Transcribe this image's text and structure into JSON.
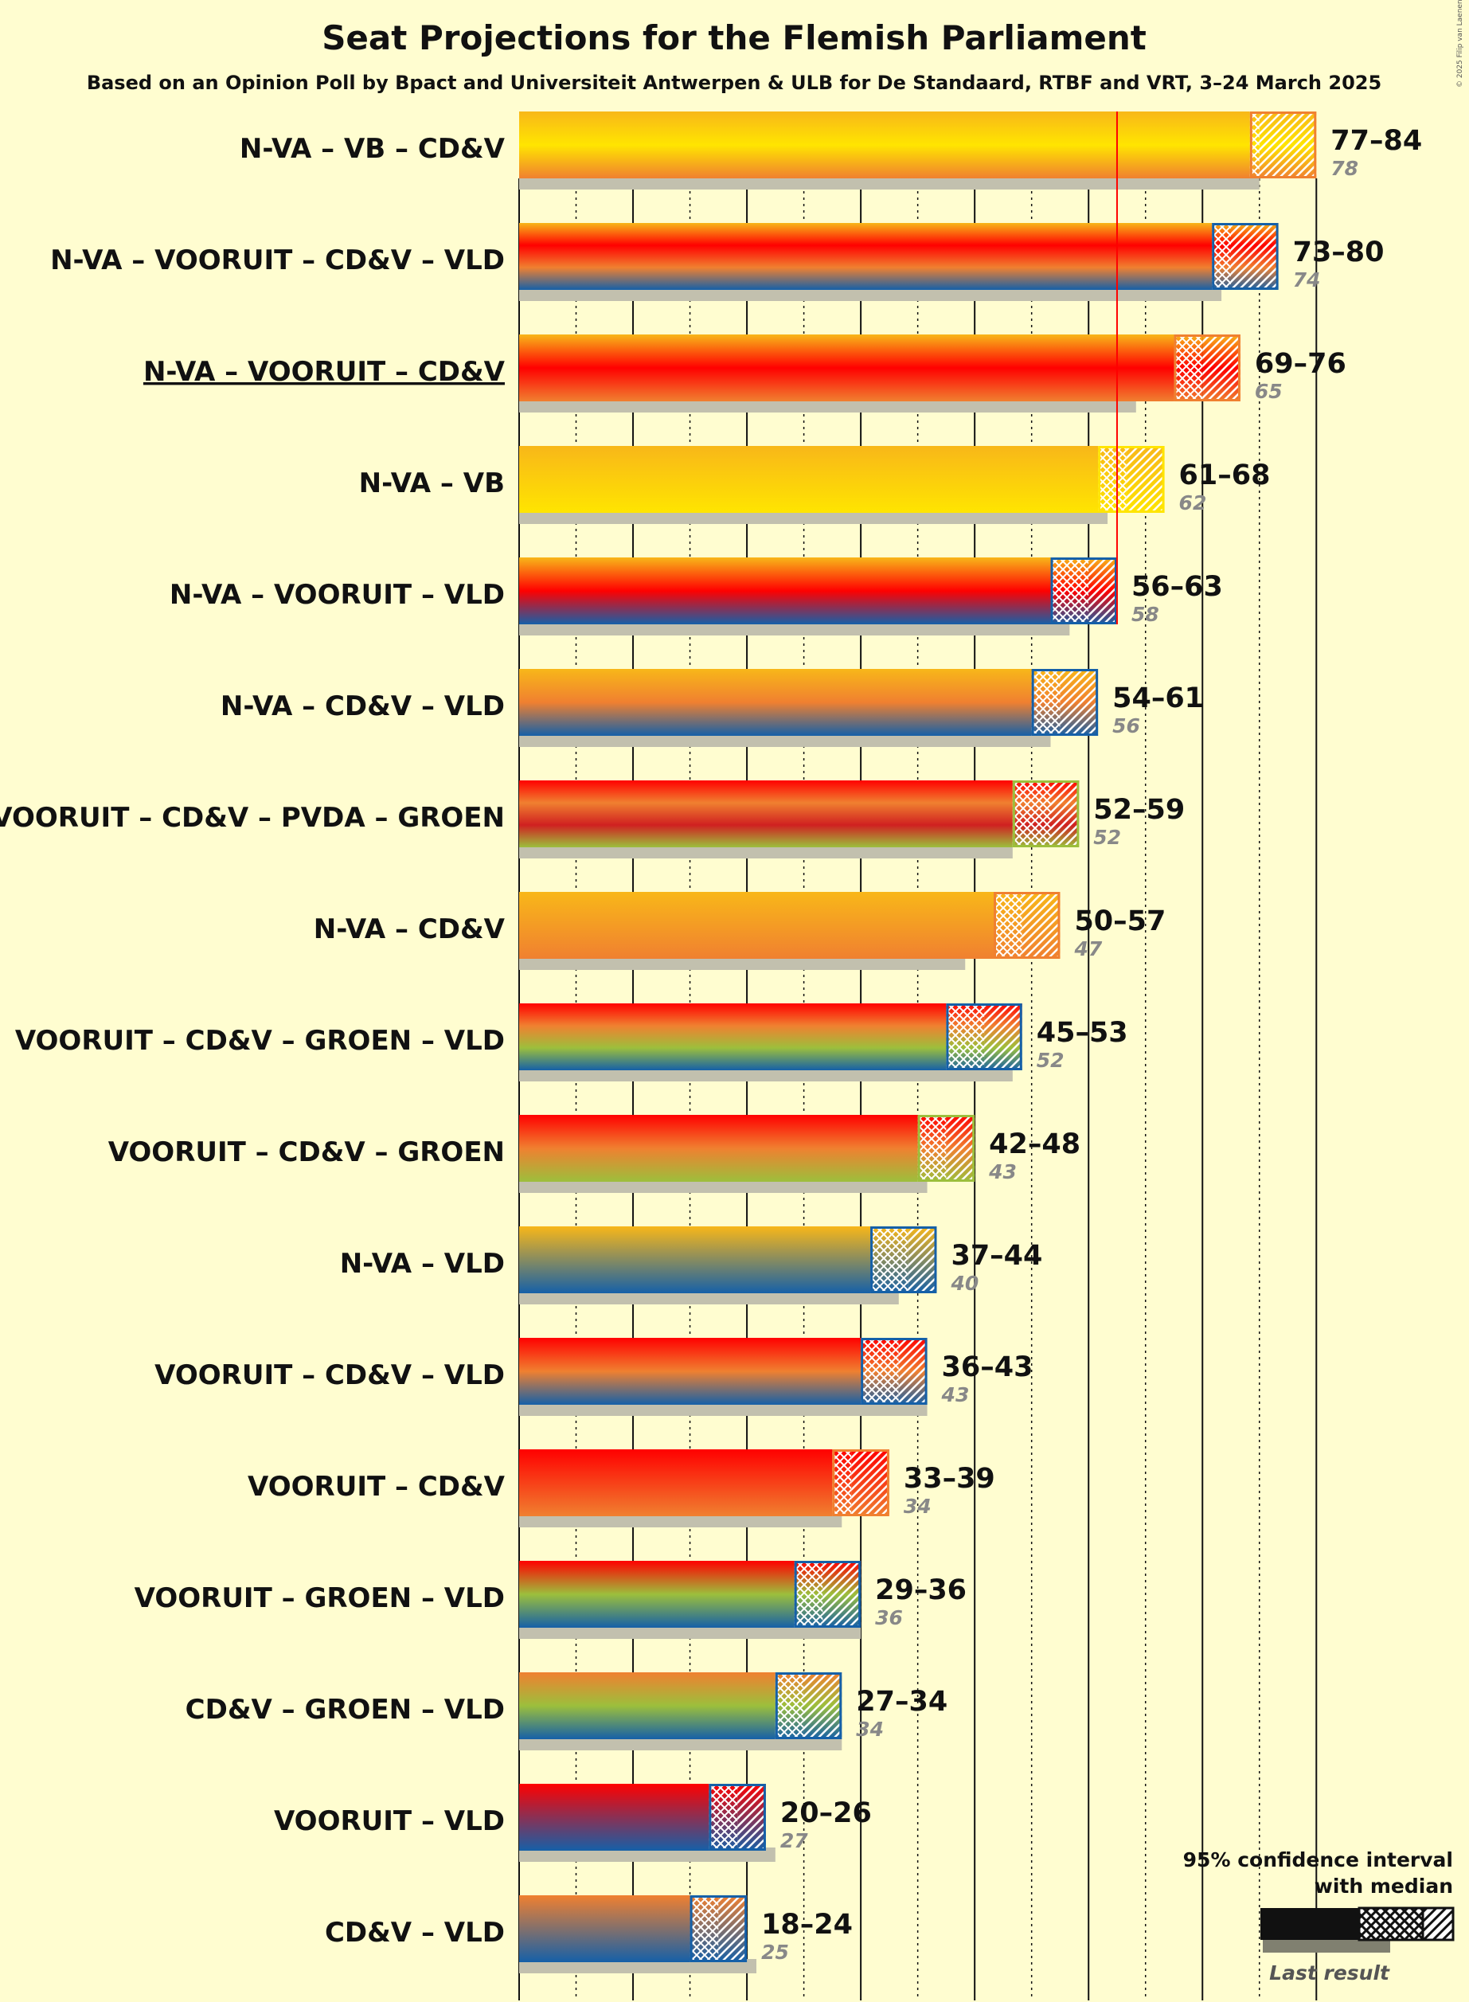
{
  "chart_data": {
    "type": "bar",
    "title": "Seat Projections for the Flemish Parliament",
    "subtitle": "Based on an Opinion Poll by Bpact and Universiteit Antwerpen & ULB for De Standaard, RTBF and VRT, 3–24 March 2025",
    "copyright": "© 2025 Filip van Laenen",
    "majority": 63,
    "xlim": [
      0,
      84
    ],
    "colors": {
      "N-VA": "#f8b719",
      "VB": "#ffe500",
      "CD&V": "#f08030",
      "VOORUIT": "#ff0000",
      "VLD": "#1560a8",
      "PVDA": "#d02020",
      "GROEN": "#9cbf3c"
    },
    "series": [
      {
        "name": "N-VA – VB – CD&V",
        "parties": [
          "N-VA",
          "VB",
          "CD&V"
        ],
        "low": 77,
        "median": 78,
        "high": 84,
        "range_label": "77–84",
        "last": 78,
        "last_label": "78",
        "underline": false
      },
      {
        "name": "N-VA – VOORUIT – CD&V – VLD",
        "parties": [
          "N-VA",
          "VOORUIT",
          "CD&V",
          "VLD"
        ],
        "low": 73,
        "median": 75,
        "high": 80,
        "range_label": "73–80",
        "last": 74,
        "last_label": "74",
        "underline": false
      },
      {
        "name": "N-VA – VOORUIT – CD&V",
        "parties": [
          "N-VA",
          "VOORUIT",
          "CD&V"
        ],
        "low": 69,
        "median": 72,
        "high": 76,
        "range_label": "69–76",
        "last": 65,
        "last_label": "65",
        "underline": true
      },
      {
        "name": "N-VA – VB",
        "parties": [
          "N-VA",
          "VB"
        ],
        "low": 61,
        "median": 64,
        "high": 68,
        "range_label": "61–68",
        "last": 62,
        "last_label": "62",
        "underline": false
      },
      {
        "name": "N-VA – VOORUIT – VLD",
        "parties": [
          "N-VA",
          "VOORUIT",
          "VLD"
        ],
        "low": 56,
        "median": 60,
        "high": 63,
        "range_label": "56–63",
        "last": 58,
        "last_label": "58",
        "underline": false
      },
      {
        "name": "N-VA – CD&V – VLD",
        "parties": [
          "N-VA",
          "CD&V",
          "VLD"
        ],
        "low": 54,
        "median": 57,
        "high": 61,
        "range_label": "54–61",
        "last": 56,
        "last_label": "56",
        "underline": false
      },
      {
        "name": "VOORUIT – CD&V – PVDA – GROEN",
        "parties": [
          "VOORUIT",
          "CD&V",
          "PVDA",
          "GROEN"
        ],
        "low": 52,
        "median": 56,
        "high": 59,
        "range_label": "52–59",
        "last": 52,
        "last_label": "52",
        "underline": false
      },
      {
        "name": "N-VA – CD&V",
        "parties": [
          "N-VA",
          "CD&V"
        ],
        "low": 50,
        "median": 53,
        "high": 57,
        "range_label": "50–57",
        "last": 47,
        "last_label": "47",
        "underline": false
      },
      {
        "name": "VOORUIT – CD&V – GROEN – VLD",
        "parties": [
          "VOORUIT",
          "CD&V",
          "GROEN",
          "VLD"
        ],
        "low": 45,
        "median": 49,
        "high": 53,
        "range_label": "45–53",
        "last": 52,
        "last_label": "52",
        "underline": false
      },
      {
        "name": "VOORUIT – CD&V – GROEN",
        "parties": [
          "VOORUIT",
          "CD&V",
          "GROEN"
        ],
        "low": 42,
        "median": 45,
        "high": 48,
        "range_label": "42–48",
        "last": 43,
        "last_label": "43",
        "underline": false
      },
      {
        "name": "N-VA – VLD",
        "parties": [
          "N-VA",
          "VLD"
        ],
        "low": 37,
        "median": 41,
        "high": 44,
        "range_label": "37–44",
        "last": 40,
        "last_label": "40",
        "underline": false
      },
      {
        "name": "VOORUIT – CD&V – VLD",
        "parties": [
          "VOORUIT",
          "CD&V",
          "VLD"
        ],
        "low": 36,
        "median": 40,
        "high": 43,
        "range_label": "36–43",
        "last": 43,
        "last_label": "43",
        "underline": false
      },
      {
        "name": "VOORUIT – CD&V",
        "parties": [
          "VOORUIT",
          "CD&V"
        ],
        "low": 33,
        "median": 35,
        "high": 39,
        "range_label": "33–39",
        "last": 34,
        "last_label": "34",
        "underline": false
      },
      {
        "name": "VOORUIT – GROEN – VLD",
        "parties": [
          "VOORUIT",
          "GROEN",
          "VLD"
        ],
        "low": 29,
        "median": 32,
        "high": 36,
        "range_label": "29–36",
        "last": 36,
        "last_label": "36",
        "underline": false
      },
      {
        "name": "CD&V – GROEN – VLD",
        "parties": [
          "CD&V",
          "GROEN",
          "VLD"
        ],
        "low": 27,
        "median": 30,
        "high": 34,
        "range_label": "27–34",
        "last": 34,
        "last_label": "34",
        "underline": false
      },
      {
        "name": "VOORUIT – VLD",
        "parties": [
          "VOORUIT",
          "VLD"
        ],
        "low": 20,
        "median": 23,
        "high": 26,
        "range_label": "20–26",
        "last": 27,
        "last_label": "27",
        "underline": false
      },
      {
        "name": "CD&V – VLD",
        "parties": [
          "CD&V",
          "VLD"
        ],
        "low": 18,
        "median": 21,
        "high": 24,
        "range_label": "18–24",
        "last": 25,
        "last_label": "25",
        "underline": false
      }
    ],
    "legend": {
      "title_line1": "95% confidence interval",
      "title_line2": "with median",
      "last_result": "Last result"
    }
  }
}
